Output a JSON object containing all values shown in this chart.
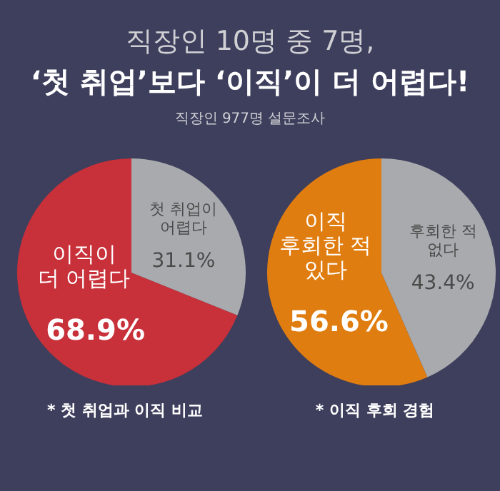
{
  "chart_data": [
    {
      "type": "pie",
      "title": "직장인 10명 중 7명,\n‘첫 취업’보다 ‘이직’이 더 어렵다!",
      "subtitle": "직장인 977명 설문조사",
      "categories": [
        "이직이\n더 어렵다",
        "첫 취업이\n어렵다"
      ],
      "values": [
        68.9,
        31.1
      ],
      "colors": [
        "#c8303a",
        "#a8aaad"
      ],
      "value_labels": [
        "68.9%",
        "31.1%"
      ],
      "annotations": [
        "* 첫 취업과 이직 비교"
      ]
    },
    {
      "type": "pie",
      "categories": [
        "이직\n후회한 적\n있다",
        "후회한 적\n없다"
      ],
      "values": [
        56.6,
        43.4
      ],
      "colors": [
        "#e07d10",
        "#a8aaad"
      ],
      "value_labels": [
        "56.6%",
        "43.4%"
      ],
      "annotations": [
        "* 이직 후회 경험"
      ]
    }
  ]
}
